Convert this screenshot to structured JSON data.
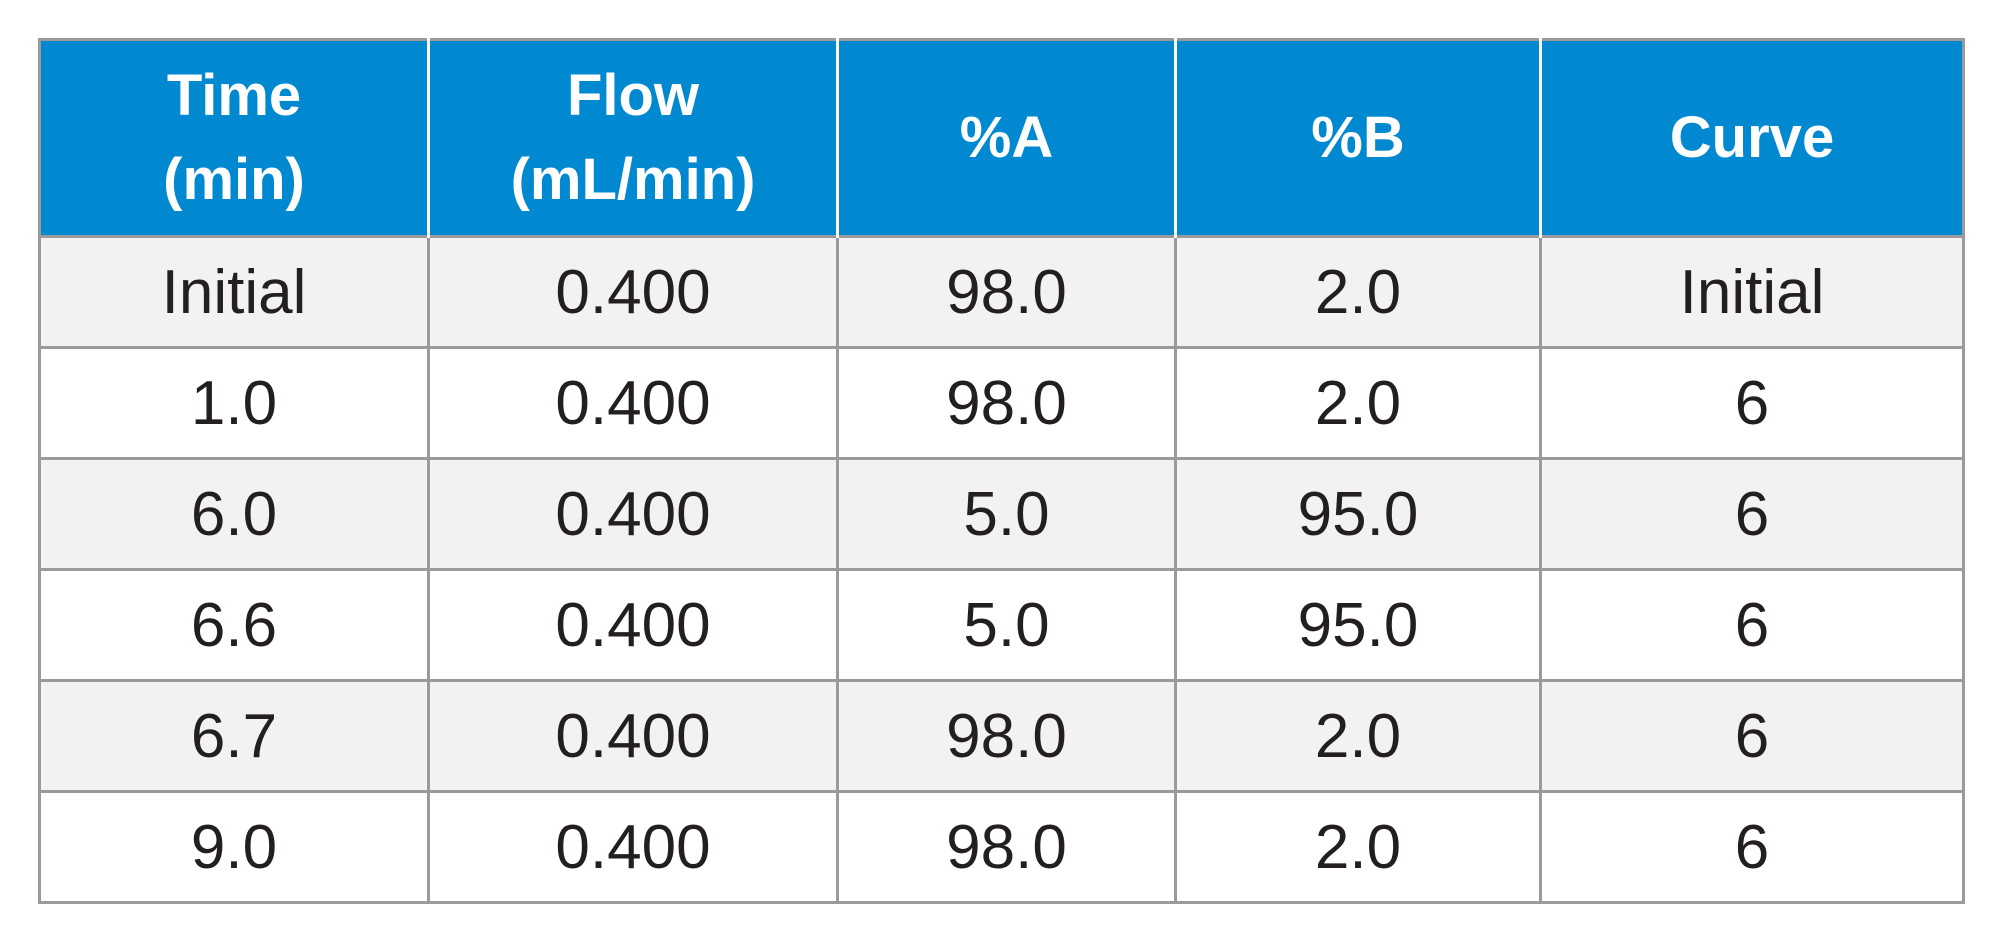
{
  "table": {
    "headers": [
      {
        "line1": "Time",
        "line2": "(min)"
      },
      {
        "line1": "Flow",
        "line2": "(mL/min)"
      },
      {
        "line1": "%A",
        "line2": ""
      },
      {
        "line1": "%B",
        "line2": ""
      },
      {
        "line1": "Curve",
        "line2": ""
      }
    ],
    "rows": [
      [
        "Initial",
        "0.400",
        "98.0",
        "2.0",
        "Initial"
      ],
      [
        "1.0",
        "0.400",
        "98.0",
        "2.0",
        "6"
      ],
      [
        "6.0",
        "0.400",
        "5.0",
        "95.0",
        "6"
      ],
      [
        "6.6",
        "0.400",
        "5.0",
        "95.0",
        "6"
      ],
      [
        "6.7",
        "0.400",
        "98.0",
        "2.0",
        "6"
      ],
      [
        "9.0",
        "0.400",
        "98.0",
        "2.0",
        "6"
      ]
    ]
  },
  "colors": {
    "header_background": "#0089d1",
    "header_text": "#ffffff",
    "row_alt_background": "#f2f2f4",
    "grid_border": "#9a9a9a",
    "body_text": "#231f20"
  }
}
